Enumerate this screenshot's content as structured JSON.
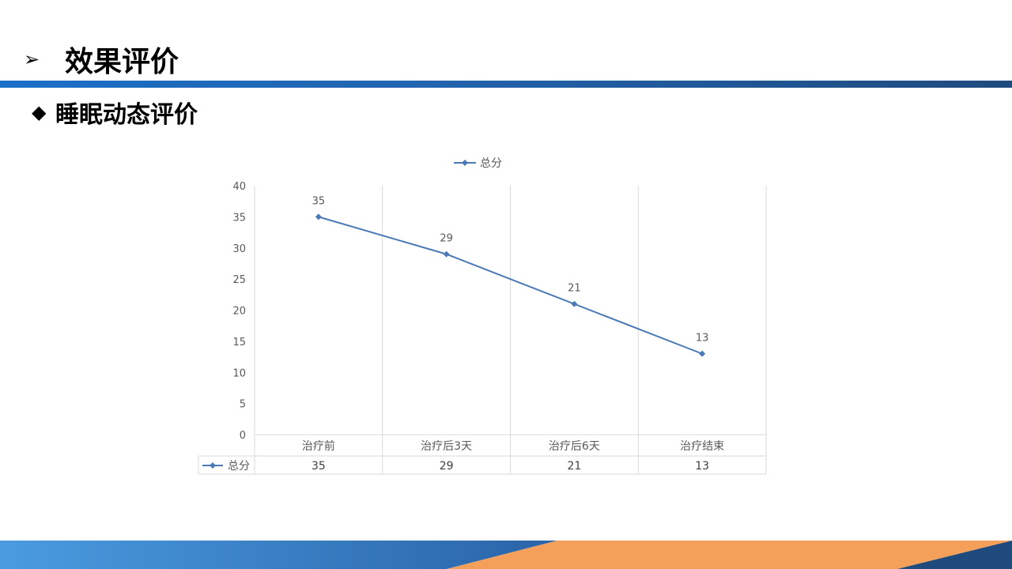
{
  "header": {
    "bullet": "➢",
    "title": "效果评价"
  },
  "section": {
    "bullet": "◆",
    "title": "睡眠动态评价"
  },
  "colors": {
    "series": "#4a79b6",
    "header_bar": "#1f5fad",
    "footer_blue": "#3f86cf",
    "footer_orange": "#f5a05a",
    "footer_navy": "#1f4a7e"
  },
  "chart_data": {
    "type": "line",
    "categories": [
      "治疗前",
      "治疗后3天",
      "治疗后6天",
      "治疗结束"
    ],
    "series": [
      {
        "name": "总分",
        "values": [
          35,
          29,
          21,
          13
        ]
      }
    ],
    "ylim": [
      0,
      40
    ],
    "yticks": [
      0,
      5,
      10,
      15,
      20,
      25,
      30,
      35,
      40
    ],
    "legend": "top-center",
    "data_table": true,
    "grid": "vertical"
  }
}
